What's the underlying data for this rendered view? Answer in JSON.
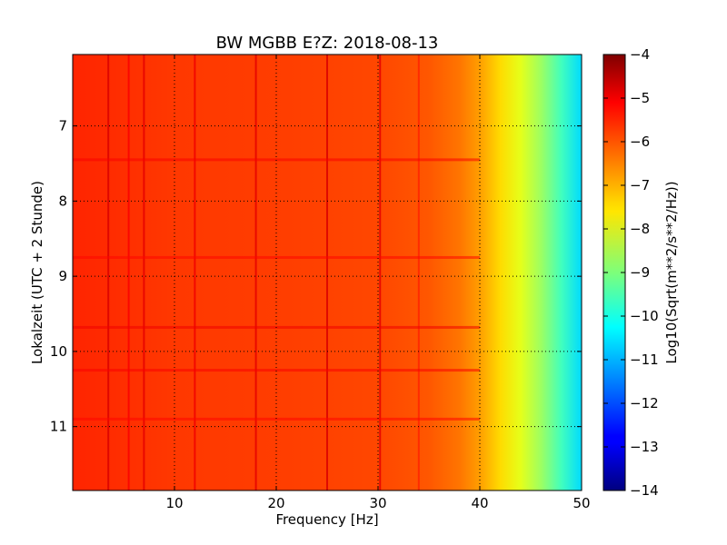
{
  "chart_data": {
    "type": "heatmap",
    "title": "BW MGBB E?Z: 2018-08-13",
    "xlabel": "Frequency [Hz]",
    "ylabel": "Lokalzeit (UTC + 2 Stunde)",
    "xlim": [
      0,
      50
    ],
    "ylim": [
      11.85,
      6.05
    ],
    "x_ticks": [
      10,
      20,
      30,
      40,
      50
    ],
    "y_ticks": [
      7,
      8,
      9,
      10,
      11
    ],
    "grid": true,
    "colorbar": {
      "label": "Log10(Sqrt(m**2/s**2/Hz))",
      "range": [
        -14,
        -4
      ],
      "ticks": [
        -4,
        -5,
        -6,
        -7,
        -8,
        -9,
        -10,
        -11,
        -12,
        -13,
        -14
      ],
      "colormap": "jet"
    },
    "spectral_profile": {
      "frequency_hz": [
        0,
        5,
        10,
        20,
        30,
        35,
        38,
        40,
        42,
        44,
        46,
        48,
        50
      ],
      "log10_amplitude": [
        -5.6,
        -5.7,
        -5.8,
        -5.85,
        -5.95,
        -6.1,
        -6.4,
        -6.8,
        -7.4,
        -8.0,
        -8.7,
        -9.6,
        -10.6
      ]
    },
    "spectral_lines": [
      {
        "frequency_hz": 3.5,
        "log10_amplitude": -4.9
      },
      {
        "frequency_hz": 5.5,
        "log10_amplitude": -5.2
      },
      {
        "frequency_hz": 7.0,
        "log10_amplitude": -5.0
      },
      {
        "frequency_hz": 12.0,
        "log10_amplitude": -5.1
      },
      {
        "frequency_hz": 18.0,
        "log10_amplitude": -5.0
      },
      {
        "frequency_hz": 25.0,
        "log10_amplitude": -4.9
      },
      {
        "frequency_hz": 30.2,
        "log10_amplitude": -5.0
      },
      {
        "frequency_hz": 34.0,
        "log10_amplitude": -5.6
      }
    ],
    "noise_bands": [
      {
        "time_h": 7.45,
        "log10_amplitude": -5.2
      },
      {
        "time_h": 8.75,
        "log10_amplitude": -5.3
      },
      {
        "time_h": 9.68,
        "log10_amplitude": -5.1
      },
      {
        "time_h": 10.25,
        "log10_amplitude": -5.2
      },
      {
        "time_h": 10.9,
        "log10_amplitude": -5.3
      }
    ]
  }
}
